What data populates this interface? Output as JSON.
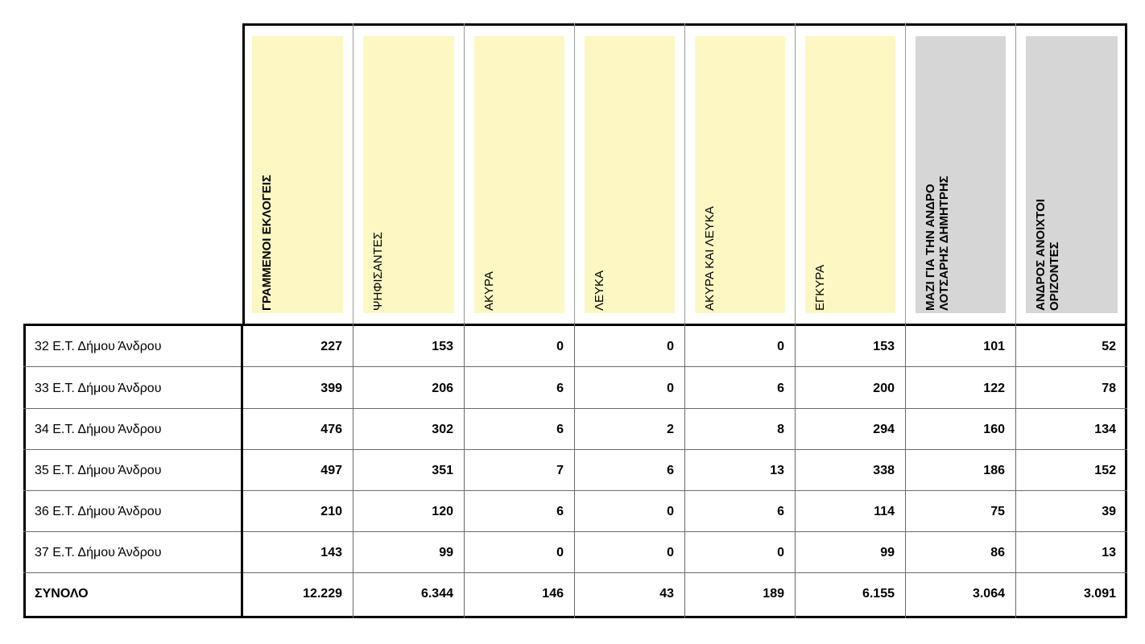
{
  "headers": [
    {
      "label": "ΓΡΑΜΜΕΝΟΙ ΕΚΛΟΓΕΙΣ",
      "bold": true,
      "fill": "yellow"
    },
    {
      "label": "ΨΗΦΙΣΑΝΤΕΣ",
      "bold": false,
      "fill": "yellow"
    },
    {
      "label": "ΑΚΥΡΑ",
      "bold": false,
      "fill": "yellow"
    },
    {
      "label": "ΛΕΥΚΑ",
      "bold": false,
      "fill": "yellow"
    },
    {
      "label": "ΑΚΥΡΑ ΚΑΙ ΛΕΥΚΑ",
      "bold": false,
      "fill": "yellow"
    },
    {
      "label": "ΕΓΚΥΡΑ",
      "bold": false,
      "fill": "yellow"
    },
    {
      "label": "ΜΑΖΙ ΓΙΑ ΤΗΝ ΑΝΔΡΟ\nΛΟΤΣΑΡΗΣ ΔΗΜΗΤΡΗΣ",
      "bold": true,
      "fill": "gray"
    },
    {
      "label": "ΑΝΔΡΟΣ ΑΝΟΙΧΤΟΙ\nΟΡΙΖΟΝΤΕΣ",
      "bold": true,
      "fill": "gray"
    }
  ],
  "rows": [
    {
      "label": "32 Ε.Τ. Δήμου Άνδρου",
      "values": [
        "227",
        "153",
        "0",
        "0",
        "0",
        "153",
        "101",
        "52"
      ]
    },
    {
      "label": "33 Ε.Τ. Δήμου Άνδρου",
      "values": [
        "399",
        "206",
        "6",
        "0",
        "6",
        "200",
        "122",
        "78"
      ]
    },
    {
      "label": "34 Ε.Τ. Δήμου Άνδρου",
      "values": [
        "476",
        "302",
        "6",
        "2",
        "8",
        "294",
        "160",
        "134"
      ]
    },
    {
      "label": "35 Ε.Τ. Δήμου Άνδρου",
      "values": [
        "497",
        "351",
        "7",
        "6",
        "13",
        "338",
        "186",
        "152"
      ]
    },
    {
      "label": "36 Ε.Τ. Δήμου Άνδρου",
      "values": [
        "210",
        "120",
        "6",
        "0",
        "6",
        "114",
        "75",
        "39"
      ]
    },
    {
      "label": "37 Ε.Τ. Δήμου Άνδρου",
      "values": [
        "143",
        "99",
        "0",
        "0",
        "0",
        "99",
        "86",
        "13"
      ]
    }
  ],
  "total": {
    "label": "ΣΥΝΟΛΟ",
    "values": [
      "12.229",
      "6.344",
      "146",
      "43",
      "189",
      "6.155",
      "3.064",
      "3.091"
    ]
  },
  "colors": {
    "yellow": "#fdf8c3",
    "gray": "#d6d6d6"
  }
}
